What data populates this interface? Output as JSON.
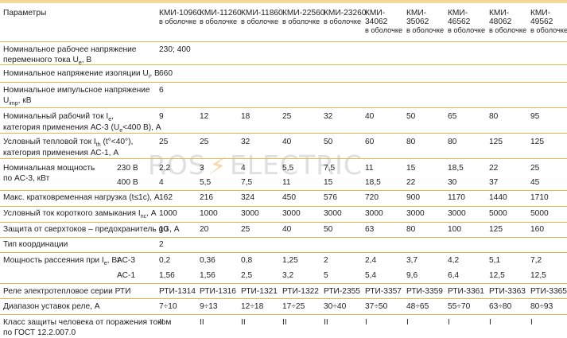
{
  "header": {
    "param_label": "Параметры",
    "models": [
      {
        "name": "КМИ-10960",
        "sub": "в оболочке"
      },
      {
        "name": "КМИ-11260",
        "sub": "в оболочке"
      },
      {
        "name": "КМИ-11860",
        "sub": "в оболочке"
      },
      {
        "name": "КМИ-22560",
        "sub": "в оболочке"
      },
      {
        "name": "КМИ-23260",
        "sub": "в оболочке"
      },
      {
        "name": "КМИ-",
        "name2": "34062",
        "sub": "в оболочке"
      },
      {
        "name": "КМИ-",
        "name2": "35062",
        "sub": "в оболочке"
      },
      {
        "name": "КМИ-",
        "name2": "46562",
        "sub": "в оболочке"
      },
      {
        "name": "КМИ-",
        "name2": "48062",
        "sub": "в оболочке"
      },
      {
        "name": "КМИ-",
        "name2": "49562",
        "sub": "в оболочке"
      }
    ]
  },
  "rows": {
    "voltage": {
      "label1": "Номинальное рабочее напряжение",
      "label2": "переменного тока U",
      "sub": "e",
      "label2b": ", В",
      "value": "230; 400"
    },
    "insulation": {
      "label": "Номинальное напряжение изоляции U",
      "sub": "i",
      "labelb": ", В",
      "value": "660"
    },
    "impulse": {
      "label1": "Номинальное импульсное напряжение",
      "label2": "U",
      "sub": "imp",
      "label2b": ", кВ",
      "value": "6"
    },
    "current": {
      "label1a": "Номинальный рабочий ток I",
      "sub1": "e",
      "label1b": ",",
      "label2a": "категория применения АС-3 (U",
      "sub2": "e",
      "label2b": "<400 В), А",
      "values": [
        "9",
        "12",
        "18",
        "25",
        "32",
        "40",
        "50",
        "65",
        "80",
        "95"
      ]
    },
    "thermal": {
      "label1a": "Условный тепловой ток I",
      "sub1": "th",
      "label1b": " (t°<40°),",
      "label2": "категория применения АС-1, А",
      "values": [
        "25",
        "25",
        "32",
        "40",
        "50",
        "60",
        "80",
        "80",
        "125",
        "125"
      ]
    },
    "power": {
      "label1": "Номинальная мощность",
      "label2": "по АС-3, кВт",
      "v230_label": "230 В",
      "v230": [
        "2,2",
        "3",
        "4",
        "5,5",
        "7,5",
        "11",
        "15",
        "18,5",
        "22",
        "25"
      ],
      "v400_label": "400 В",
      "v400": [
        "4",
        "5,5",
        "7,5",
        "11",
        "15",
        "18,5",
        "22",
        "30",
        "37",
        "45"
      ]
    },
    "overload": {
      "label": "Макс. кратковременная нагрузка (t≤1с), А",
      "values": [
        "162",
        "216",
        "324",
        "450",
        "576",
        "720",
        "900",
        "1170",
        "1440",
        "1710"
      ]
    },
    "shortcircuit": {
      "label": "Условный ток короткого замыкания I",
      "sub": "nc",
      "labelb": ", А",
      "values": [
        "1000",
        "1000",
        "3000",
        "3000",
        "3000",
        "3000",
        "3000",
        "3000",
        "5000",
        "5000"
      ]
    },
    "fuse": {
      "label": "Защита от сверхтоков – предохранитель gG, А",
      "values": [
        "10",
        "20",
        "25",
        "40",
        "50",
        "63",
        "80",
        "100",
        "125",
        "160"
      ]
    },
    "coordination": {
      "label": "Тип координации",
      "value": "2"
    },
    "dissipation": {
      "label": "Мощность рассеяния при I",
      "sub": "e",
      "labelb": ", Вт",
      "ac3_label": "АС-3",
      "ac3": [
        "0,2",
        "0,36",
        "0,8",
        "1,25",
        "2",
        "2,4",
        "3,7",
        "4,2",
        "5,1",
        "7,2"
      ],
      "ac1_label": "АС-1",
      "ac1": [
        "1,56",
        "1,56",
        "2,5",
        "3,2",
        "5",
        "5,4",
        "9,6",
        "6,4",
        "12,5",
        "12,5"
      ]
    },
    "relay": {
      "label": "Реле электротепловое серии РТИ",
      "values": [
        "РТИ-1314",
        "РТИ-1316",
        "РТИ-1321",
        "РТИ-1322",
        "РТИ-2355",
        "РТИ-3357",
        "РТИ-3359",
        "РТИ-3361",
        "РТИ-3363",
        "РТИ-3365"
      ]
    },
    "range": {
      "label": "Диапазон уставок реле, А",
      "values": [
        "7÷10",
        "9÷13",
        "12÷18",
        "17÷25",
        "30÷40",
        "37÷50",
        "48÷65",
        "55÷70",
        "63÷80",
        "80÷93"
      ]
    },
    "protection": {
      "label1": "Класс защиты человека от поражения током",
      "label2": "по ГОСТ 12.2.007.0",
      "values": [
        "II",
        "II",
        "II",
        "II",
        "II",
        "I",
        "I",
        "I",
        "I",
        "I"
      ]
    }
  },
  "watermark": {
    "left": "ROS",
    "right": "ELECTRIC"
  },
  "colors": {
    "rule": "#e3b84a",
    "band": "#f2d895",
    "text": "#222222",
    "watermark": "#b9b9b9",
    "bolt": "#f0a63b"
  }
}
